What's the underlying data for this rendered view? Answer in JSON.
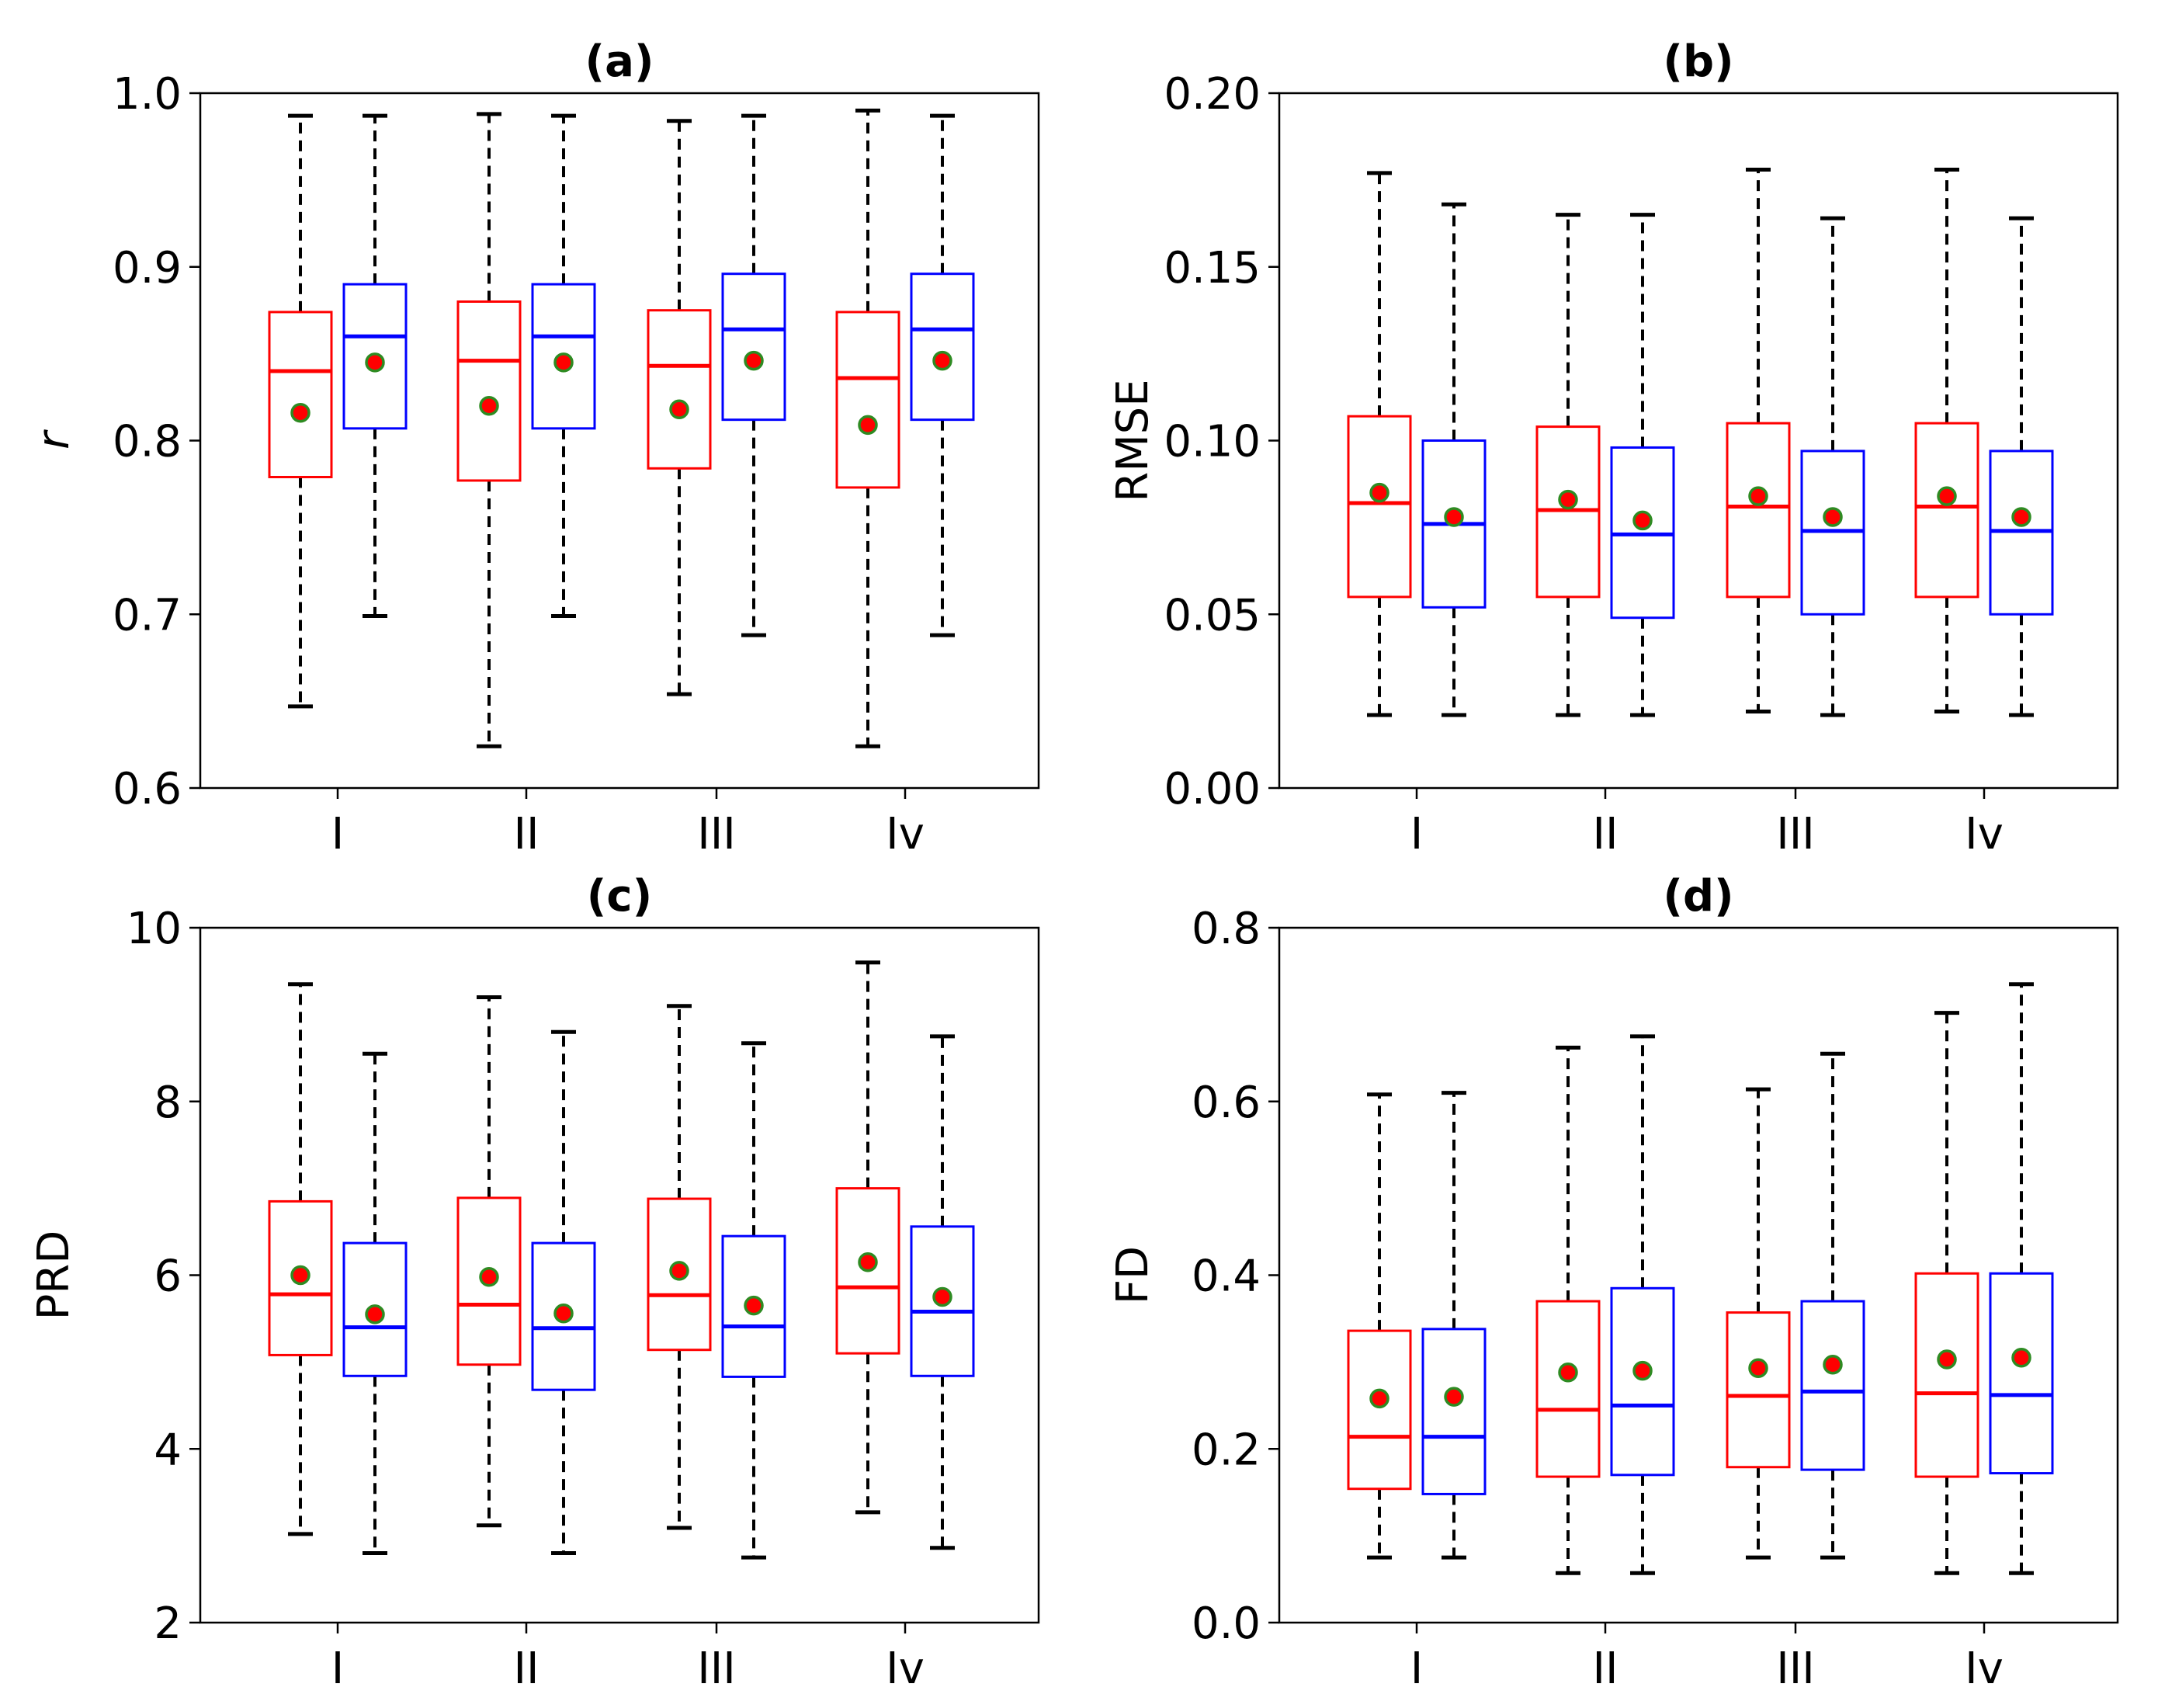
{
  "colors": {
    "series_a": "#ff0000",
    "series_b": "#0000ff",
    "whisker": "#000000",
    "mean_fill": "#ff0000",
    "mean_edge": "#2e8b22"
  },
  "chart_data": [
    {
      "type": "box",
      "title": "(a)",
      "ylabel": "r",
      "ylabel_italic": true,
      "ylim": [
        0.6,
        1.0
      ],
      "yticks": [
        0.6,
        0.7,
        0.8,
        0.9,
        1.0
      ],
      "ytick_labels": [
        "0.6",
        "0.7",
        "0.8",
        "0.9",
        "1.0"
      ],
      "categories": [
        "I",
        "II",
        "III",
        "Iv"
      ],
      "series": [
        {
          "color": "red",
          "boxes": [
            {
              "min": 0.647,
              "q1": 0.779,
              "median": 0.84,
              "q3": 0.874,
              "max": 0.987,
              "mean": 0.816
            },
            {
              "min": 0.624,
              "q1": 0.777,
              "median": 0.846,
              "q3": 0.88,
              "max": 0.988,
              "mean": 0.82
            },
            {
              "min": 0.654,
              "q1": 0.784,
              "median": 0.843,
              "q3": 0.875,
              "max": 0.984,
              "mean": 0.818
            },
            {
              "min": 0.624,
              "q1": 0.773,
              "median": 0.836,
              "q3": 0.874,
              "max": 0.99,
              "mean": 0.809
            }
          ]
        },
        {
          "color": "blue",
          "boxes": [
            {
              "min": 0.699,
              "q1": 0.807,
              "median": 0.86,
              "q3": 0.89,
              "max": 0.987,
              "mean": 0.845
            },
            {
              "min": 0.699,
              "q1": 0.807,
              "median": 0.86,
              "q3": 0.89,
              "max": 0.987,
              "mean": 0.845
            },
            {
              "min": 0.688,
              "q1": 0.812,
              "median": 0.864,
              "q3": 0.896,
              "max": 0.987,
              "mean": 0.846
            },
            {
              "min": 0.688,
              "q1": 0.812,
              "median": 0.864,
              "q3": 0.896,
              "max": 0.987,
              "mean": 0.846
            }
          ]
        }
      ]
    },
    {
      "type": "box",
      "title": "(b)",
      "ylabel": "RMSE",
      "ylabel_italic": false,
      "ylim": [
        0.0,
        0.2
      ],
      "yticks": [
        0.0,
        0.05,
        0.1,
        0.15,
        0.2
      ],
      "ytick_labels": [
        "0.00",
        "0.05",
        "0.10",
        "0.15",
        "0.20"
      ],
      "categories": [
        "I",
        "II",
        "III",
        "Iv"
      ],
      "series": [
        {
          "color": "red",
          "boxes": [
            {
              "min": 0.021,
              "q1": 0.055,
              "median": 0.082,
              "q3": 0.107,
              "max": 0.177,
              "mean": 0.085
            },
            {
              "min": 0.021,
              "q1": 0.055,
              "median": 0.08,
              "q3": 0.104,
              "max": 0.165,
              "mean": 0.083
            },
            {
              "min": 0.022,
              "q1": 0.055,
              "median": 0.081,
              "q3": 0.105,
              "max": 0.178,
              "mean": 0.084
            },
            {
              "min": 0.022,
              "q1": 0.055,
              "median": 0.081,
              "q3": 0.105,
              "max": 0.178,
              "mean": 0.084
            }
          ]
        },
        {
          "color": "blue",
          "boxes": [
            {
              "min": 0.021,
              "q1": 0.052,
              "median": 0.076,
              "q3": 0.1,
              "max": 0.168,
              "mean": 0.078
            },
            {
              "min": 0.021,
              "q1": 0.049,
              "median": 0.073,
              "q3": 0.098,
              "max": 0.165,
              "mean": 0.077
            },
            {
              "min": 0.021,
              "q1": 0.05,
              "median": 0.074,
              "q3": 0.097,
              "max": 0.164,
              "mean": 0.078
            },
            {
              "min": 0.021,
              "q1": 0.05,
              "median": 0.074,
              "q3": 0.097,
              "max": 0.164,
              "mean": 0.078
            }
          ]
        }
      ]
    },
    {
      "type": "box",
      "title": "(c)",
      "ylabel": "PRD",
      "ylabel_italic": false,
      "ylim": [
        2,
        10
      ],
      "yticks": [
        2,
        4,
        6,
        8,
        10
      ],
      "ytick_labels": [
        "2",
        "4",
        "6",
        "8",
        "10"
      ],
      "categories": [
        "I",
        "II",
        "III",
        "Iv"
      ],
      "series": [
        {
          "color": "red",
          "boxes": [
            {
              "min": 3.02,
              "q1": 5.08,
              "median": 5.78,
              "q3": 6.85,
              "max": 9.35,
              "mean": 6.0
            },
            {
              "min": 3.12,
              "q1": 4.97,
              "median": 5.66,
              "q3": 6.89,
              "max": 9.2,
              "mean": 5.98
            },
            {
              "min": 3.09,
              "q1": 5.14,
              "median": 5.77,
              "q3": 6.88,
              "max": 9.1,
              "mean": 6.05
            },
            {
              "min": 3.27,
              "q1": 5.1,
              "median": 5.86,
              "q3": 7.0,
              "max": 9.6,
              "mean": 6.15
            }
          ]
        },
        {
          "color": "blue",
          "boxes": [
            {
              "min": 2.8,
              "q1": 4.84,
              "median": 5.4,
              "q3": 6.37,
              "max": 8.55,
              "mean": 5.55
            },
            {
              "min": 2.8,
              "q1": 4.68,
              "median": 5.39,
              "q3": 6.37,
              "max": 8.8,
              "mean": 5.56
            },
            {
              "min": 2.75,
              "q1": 4.83,
              "median": 5.41,
              "q3": 6.45,
              "max": 8.67,
              "mean": 5.65
            },
            {
              "min": 2.86,
              "q1": 4.84,
              "median": 5.58,
              "q3": 6.56,
              "max": 8.75,
              "mean": 5.75
            }
          ]
        }
      ]
    },
    {
      "type": "box",
      "title": "(d)",
      "ylabel": "FD",
      "ylabel_italic": false,
      "ylim": [
        0.0,
        0.8
      ],
      "yticks": [
        0.0,
        0.2,
        0.4,
        0.6,
        0.8
      ],
      "ytick_labels": [
        "0.0",
        "0.2",
        "0.4",
        "0.6",
        "0.8"
      ],
      "categories": [
        "I",
        "II",
        "III",
        "Iv"
      ],
      "series": [
        {
          "color": "red",
          "boxes": [
            {
              "min": 0.075,
              "q1": 0.154,
              "median": 0.214,
              "q3": 0.336,
              "max": 0.608,
              "mean": 0.258
            },
            {
              "min": 0.057,
              "q1": 0.168,
              "median": 0.245,
              "q3": 0.37,
              "max": 0.662,
              "mean": 0.288
            },
            {
              "min": 0.075,
              "q1": 0.179,
              "median": 0.261,
              "q3": 0.357,
              "max": 0.614,
              "mean": 0.293
            },
            {
              "min": 0.057,
              "q1": 0.168,
              "median": 0.264,
              "q3": 0.402,
              "max": 0.702,
              "mean": 0.303
            }
          ]
        },
        {
          "color": "blue",
          "boxes": [
            {
              "min": 0.075,
              "q1": 0.148,
              "median": 0.214,
              "q3": 0.338,
              "max": 0.61,
              "mean": 0.26
            },
            {
              "min": 0.057,
              "q1": 0.17,
              "median": 0.25,
              "q3": 0.385,
              "max": 0.675,
              "mean": 0.29
            },
            {
              "min": 0.075,
              "q1": 0.176,
              "median": 0.266,
              "q3": 0.37,
              "max": 0.655,
              "mean": 0.297
            },
            {
              "min": 0.057,
              "q1": 0.172,
              "median": 0.262,
              "q3": 0.402,
              "max": 0.735,
              "mean": 0.305
            }
          ]
        }
      ]
    }
  ]
}
